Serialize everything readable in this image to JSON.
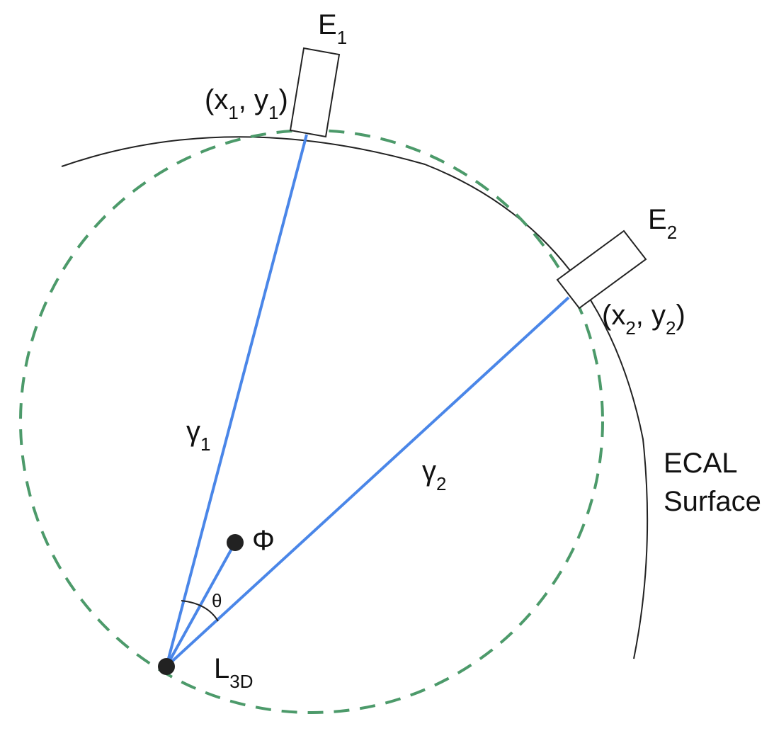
{
  "labels": {
    "e1": "E",
    "e1_sub": "1",
    "e2": "E",
    "e2_sub": "2",
    "p1_open": "(x",
    "p1_sub_x": "1",
    "p1_mid": ", y",
    "p1_sub_y": "1",
    "p1_close": ")",
    "p2_open": "(x",
    "p2_sub_x": "2",
    "p2_mid": ", y",
    "p2_sub_y": "2",
    "p2_close": ")",
    "gamma1": "γ",
    "gamma1_sub": "1",
    "gamma2": "γ",
    "gamma2_sub": "2",
    "phi": "Φ",
    "theta": "θ",
    "l3d": "L",
    "l3d_sub": "3D",
    "ecal_line1": "ECAL",
    "ecal_line2": "Surface"
  },
  "colors": {
    "photon_line": "#4a86e8",
    "dashed_circle": "#4c9a6a",
    "surface": "#222222",
    "point": "#222222"
  }
}
